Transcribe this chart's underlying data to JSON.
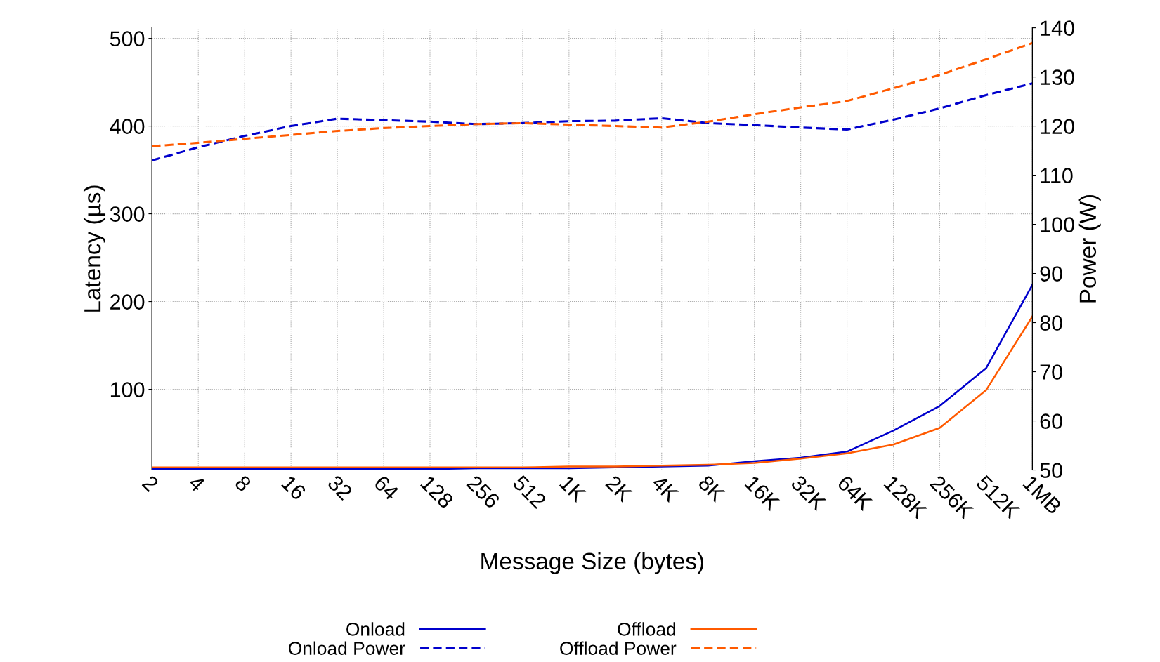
{
  "chart_data": {
    "type": "line",
    "xlabel": "Message Size (bytes)",
    "ylabel": "Latency (µs)",
    "y2label": "Power (W)",
    "categories": [
      "2",
      "4",
      "8",
      "16",
      "32",
      "64",
      "128",
      "256",
      "512",
      "1K",
      "2K",
      "4K",
      "8K",
      "16K",
      "32K",
      "64K",
      "128K",
      "256K",
      "512K",
      "1MB"
    ],
    "series": [
      {
        "name": "Onload",
        "color": "#0000cc",
        "line_style": "solid",
        "values": [
          9,
          9,
          9,
          9,
          9,
          9,
          9,
          10,
          10,
          10,
          11,
          12,
          13,
          18,
          22,
          29,
          53,
          81,
          124,
          219
        ]
      },
      {
        "name": "Onload Power",
        "color": "#0000cc",
        "line_style": "dashed",
        "axis": "y2",
        "values": [
          113.0,
          115.7,
          118.0,
          120.0,
          121.5,
          121.2,
          120.9,
          120.4,
          120.6,
          121.0,
          121.1,
          121.6,
          120.6,
          120.2,
          119.7,
          119.3,
          121.3,
          123.6,
          126.3,
          128.7
        ]
      },
      {
        "name": "Offload",
        "color": "#ff5a00",
        "line_style": "solid",
        "values": [
          11,
          11,
          11,
          11,
          11,
          11,
          11,
          11,
          11,
          12,
          12,
          13,
          14,
          16,
          21,
          27,
          37,
          56,
          99,
          183
        ]
      },
      {
        "name": "Offload Power",
        "color": "#ff5a00",
        "line_style": "dashed",
        "axis": "y2",
        "values": [
          115.9,
          116.6,
          117.4,
          118.2,
          119.0,
          119.6,
          120.0,
          120.4,
          120.6,
          120.3,
          120.0,
          119.7,
          120.9,
          122.4,
          123.8,
          125.1,
          127.7,
          130.4,
          133.6,
          136.9
        ]
      }
    ],
    "ylim": [
      8,
      512
    ],
    "yticks": [
      100,
      200,
      300,
      400,
      500
    ],
    "y2lim": [
      50,
      140
    ],
    "y2ticks": [
      50,
      60,
      70,
      80,
      90,
      100,
      110,
      120,
      130,
      140
    ],
    "grid": true,
    "legend": "bottom"
  }
}
